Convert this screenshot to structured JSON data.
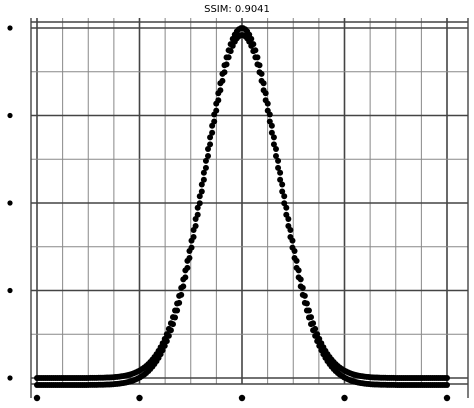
{
  "chart_data": {
    "type": "scatter",
    "title": "SSIM: 0.9041",
    "xlabel": "",
    "ylabel": "",
    "xlim": [
      -4,
      4
    ],
    "ylim": [
      0,
      1
    ],
    "grid": true,
    "series": [
      {
        "curve": "gaussian",
        "mean": 0,
        "std": 0.72,
        "points": 200,
        "x_range": [
          -4,
          4
        ]
      },
      {
        "curve": "gaussian",
        "mean": 0,
        "std": 0.72,
        "points": 200,
        "x_range": [
          -4,
          4
        ],
        "baseline_offset": -0.02
      }
    ],
    "colors": {
      "marker": "#000000",
      "grid": "#555555",
      "axis": "#333333"
    }
  }
}
